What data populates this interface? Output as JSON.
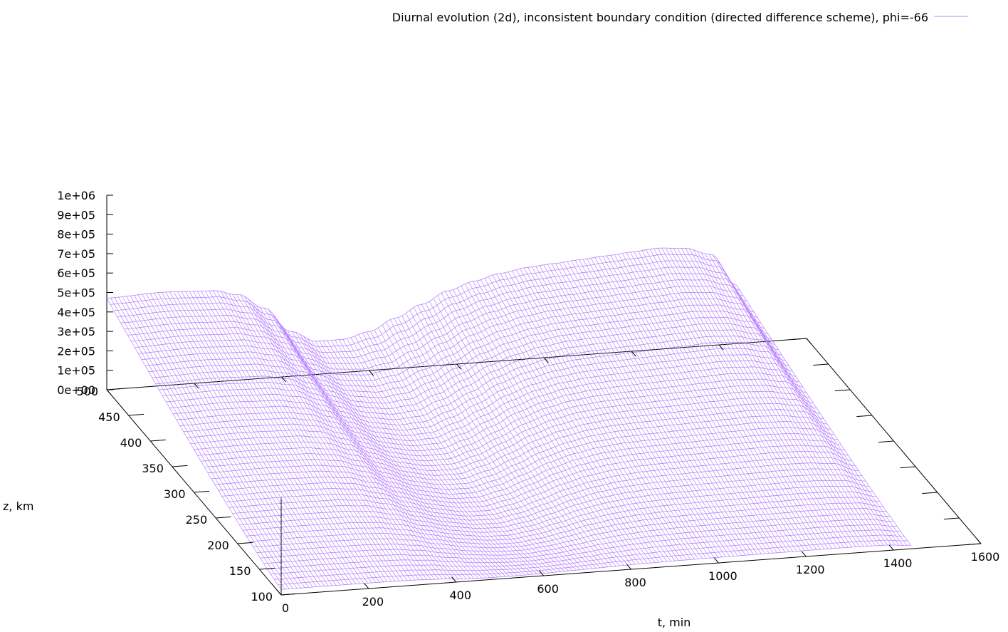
{
  "chart_data": {
    "type": "surface",
    "title": "",
    "legend": {
      "position": "top-right",
      "entries": [
        {
          "name": "Diurnal evolution (2d), inconsistent boundary condition (directed difference scheme), phi=-66",
          "color": "#9400d3"
        }
      ]
    },
    "xlabel": "t, min",
    "ylabel": "z, km",
    "zlabel": "",
    "xlim": [
      0,
      1600
    ],
    "ylim": [
      100,
      500
    ],
    "zlim": [
      0,
      1000000
    ],
    "x_ticks": [
      "0",
      "200",
      "400",
      "600",
      "800",
      "1000",
      "1200",
      "1400",
      "1600"
    ],
    "y_ticks": [
      "100",
      "150",
      "200",
      "250",
      "300",
      "350",
      "400",
      "450",
      "500"
    ],
    "z_ticks": [
      "0e+00",
      "1e+05",
      "2e+05",
      "3e+05",
      "4e+05",
      "5e+05",
      "6e+05",
      "7e+05",
      "8e+05",
      "9e+05",
      "1e+06"
    ],
    "surface_color": "#b983ff",
    "surface_extent": {
      "t": [
        0,
        1440
      ],
      "z": [
        100,
        500
      ]
    },
    "profile_description": "Diurnal density: high plateau at night (~4.7e5 at z=500), sharp drop to near zero after sunrise (~t=300-420 min), minimum near t=600 min at low altitude, broad recovery peaking ~t=1250 min, then sharp drop near t=1400 min.",
    "profile_samples": {
      "t": [
        0,
        120,
        240,
        300,
        360,
        420,
        480,
        540,
        600,
        660,
        720,
        780,
        840,
        900,
        960,
        1020,
        1080,
        1140,
        1200,
        1260,
        1320,
        1380,
        1440
      ],
      "n_at_z500": [
        470000,
        480000,
        470000,
        440000,
        360000,
        230000,
        170000,
        170000,
        200000,
        260000,
        320000,
        380000,
        420000,
        450000,
        470000,
        480000,
        490000,
        500000,
        510000,
        520000,
        510000,
        470000,
        300000
      ]
    }
  }
}
